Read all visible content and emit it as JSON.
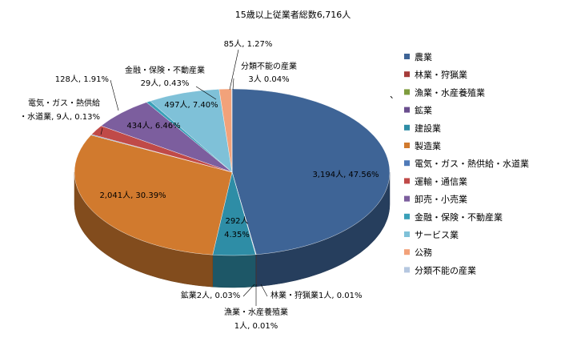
{
  "chart_data": {
    "type": "pie",
    "title": "15歳以上従業者総数6,716人",
    "legend_position": "right",
    "slices": [
      {
        "name": "農業",
        "value": 3194,
        "color": "#3E6496",
        "label": "3,194人, 47.56%"
      },
      {
        "name": "林業・狩猟業",
        "value": 1,
        "color": "#A63C3A",
        "label": "林業・狩猟業1人, 0.01%"
      },
      {
        "name": "漁業・水産養殖業",
        "value": 1,
        "color": "#7E9C3E",
        "label_lines": [
          "漁業・水産養殖業",
          "1人, 0.01%"
        ]
      },
      {
        "name": "鉱業",
        "value": 2,
        "color": "#6A4E8E",
        "label": "鉱業2人, 0.03%"
      },
      {
        "name": "建設業",
        "value": 292,
        "color": "#2E8DA6",
        "label_lines": [
          "292人",
          "4.35%"
        ]
      },
      {
        "name": "製造業",
        "value": 2041,
        "color": "#D17A2E",
        "label": "2,041人, 30.39%"
      },
      {
        "name": "電気・ガス・熱供給・水道業",
        "value": 9,
        "color": "#4F7AB8",
        "label_lines": [
          "電気・ガス・熱供給",
          "・水道業, 9人, 0.13%"
        ]
      },
      {
        "name": "運輸・通信業",
        "value": 128,
        "color": "#C04A48",
        "label": "128人, 1.91%"
      },
      {
        "name": "卸売・小売業",
        "value": 434,
        "color": "#7C5E9E",
        "label": "434人, 6.46%"
      },
      {
        "name": "金融・保険・不動産業",
        "value": 29,
        "color": "#3AA0B8",
        "label_lines": [
          "金融・保険・不動産業",
          "29人, 0.43%"
        ]
      },
      {
        "name": "サービス業",
        "value": 497,
        "color": "#7FC1D8",
        "label": "497人, 7.40%"
      },
      {
        "name": "公務",
        "value": 85,
        "color": "#F2A27A",
        "label": "85人, 1.27%"
      },
      {
        "name": "分類不能の産業",
        "value": 3,
        "color": "#B5C7E0",
        "label_lines": [
          "分類不能の産業",
          "3人 0.04%"
        ]
      }
    ],
    "stray_mark": "、"
  }
}
